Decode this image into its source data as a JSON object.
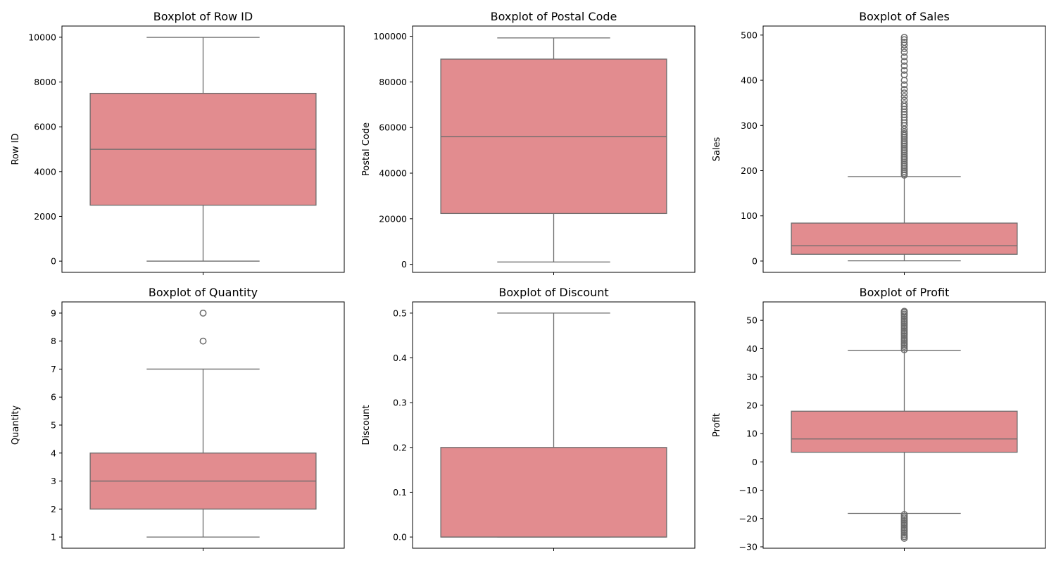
{
  "colors": {
    "box_fill": "#e28c8f",
    "line": "#6b6b6b",
    "axes": "#000000",
    "background": "#ffffff"
  },
  "chart_data": [
    {
      "type": "box",
      "title": "Boxplot of Row ID",
      "ylabel": "Row ID",
      "ylim": [
        -500,
        10500
      ],
      "yticks": [
        0,
        2000,
        4000,
        6000,
        8000,
        10000
      ],
      "ytick_labels": [
        "0",
        "2000",
        "4000",
        "6000",
        "8000",
        "10000"
      ],
      "box": {
        "whisker_low": 1,
        "q1": 2500,
        "median": 4997,
        "q3": 7495,
        "whisker_high": 9994
      },
      "outliers": []
    },
    {
      "type": "box",
      "title": "Boxplot of Postal Code",
      "ylabel": "Postal Code",
      "ylim": [
        -3500,
        104500
      ],
      "yticks": [
        0,
        20000,
        40000,
        60000,
        80000,
        100000
      ],
      "ytick_labels": [
        "0",
        "20000",
        "40000",
        "60000",
        "80000",
        "100000"
      ],
      "box": {
        "whisker_low": 1040,
        "q1": 22300,
        "median": 56000,
        "q3": 90000,
        "whisker_high": 99300
      },
      "outliers": []
    },
    {
      "type": "box",
      "title": "Boxplot of Sales",
      "ylabel": "Sales",
      "ylim": [
        -25,
        520
      ],
      "yticks": [
        0,
        100,
        200,
        300,
        400,
        500
      ],
      "ytick_labels": [
        "0",
        "100",
        "200",
        "300",
        "400",
        "500"
      ],
      "box": {
        "whisker_low": 0.5,
        "q1": 15,
        "median": 34,
        "q3": 84,
        "whisker_high": 187
      },
      "outliers": [
        190,
        194,
        198,
        202,
        206,
        210,
        214,
        218,
        222,
        226,
        230,
        234,
        238,
        242,
        246,
        250,
        254,
        258,
        262,
        266,
        270,
        274,
        278,
        282,
        286,
        292,
        300,
        306,
        312,
        318,
        324,
        330,
        336,
        342,
        348,
        356,
        364,
        372,
        380,
        390,
        400,
        412,
        422,
        432,
        442,
        452,
        462,
        470,
        478,
        484,
        490,
        495
      ]
    },
    {
      "type": "box",
      "title": "Boxplot of Quantity",
      "ylabel": "Quantity",
      "ylim": [
        0.6,
        9.4
      ],
      "yticks": [
        1,
        2,
        3,
        4,
        5,
        6,
        7,
        8,
        9
      ],
      "ytick_labels": [
        "1",
        "2",
        "3",
        "4",
        "5",
        "6",
        "7",
        "8",
        "9"
      ],
      "box": {
        "whisker_low": 1,
        "q1": 2,
        "median": 3,
        "q3": 4,
        "whisker_high": 7
      },
      "outliers": [
        8,
        9
      ]
    },
    {
      "type": "box",
      "title": "Boxplot of Discount",
      "ylabel": "Discount",
      "ylim": [
        -0.025,
        0.525
      ],
      "yticks": [
        0.0,
        0.1,
        0.2,
        0.3,
        0.4,
        0.5
      ],
      "ytick_labels": [
        "0.0",
        "0.1",
        "0.2",
        "0.3",
        "0.4",
        "0.5"
      ],
      "box": {
        "whisker_low": 0.0,
        "q1": 0.0,
        "median": 0.0,
        "q3": 0.2,
        "whisker_high": 0.5
      },
      "outliers": []
    },
    {
      "type": "box",
      "title": "Boxplot of Profit",
      "ylabel": "Profit",
      "ylim": [
        -30.5,
        56.5
      ],
      "yticks": [
        -30,
        -20,
        -10,
        0,
        10,
        20,
        30,
        40,
        50
      ],
      "ytick_labels": [
        "−30",
        "−20",
        "−10",
        "0",
        "10",
        "20",
        "30",
        "40",
        "50"
      ],
      "box": {
        "whisker_low": -18.2,
        "q1": 3.4,
        "median": 8.1,
        "q3": 17.9,
        "whisker_high": 39.3
      },
      "outliers": [
        39.6,
        40.2,
        40.8,
        41.4,
        42.0,
        42.6,
        43.2,
        43.8,
        44.4,
        45.0,
        45.6,
        46.2,
        46.8,
        47.4,
        48.0,
        48.6,
        49.2,
        49.8,
        50.4,
        51.0,
        51.6,
        52.2,
        52.8,
        53.2,
        -18.6,
        -19.2,
        -19.8,
        -20.4,
        -21.0,
        -21.6,
        -22.2,
        -22.8,
        -23.4,
        -24.0,
        -24.6,
        -25.2,
        -25.8,
        -26.4,
        -27.0
      ]
    }
  ]
}
